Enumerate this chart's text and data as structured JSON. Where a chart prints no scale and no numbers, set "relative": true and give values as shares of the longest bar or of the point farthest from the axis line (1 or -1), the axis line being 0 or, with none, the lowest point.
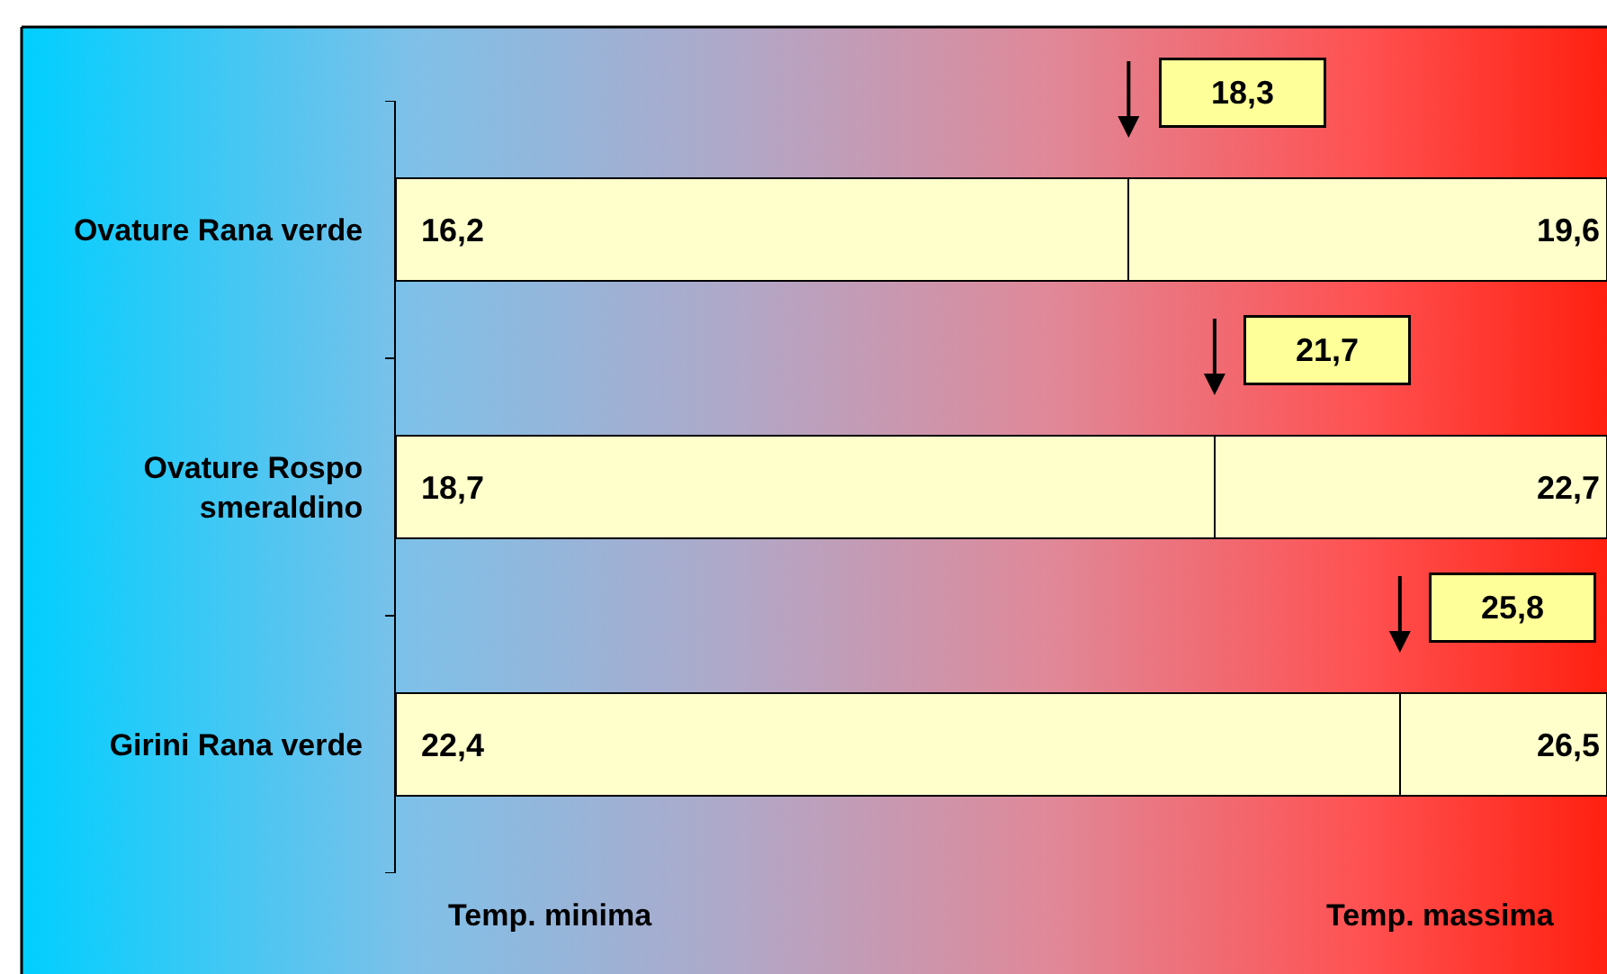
{
  "chart_data": {
    "type": "bar",
    "orientation": "horizontal",
    "stacked": true,
    "relative": true,
    "categories": [
      "Ovature Rana verde",
      "Ovature Rospo smeraldino",
      "Girini Rana verde"
    ],
    "series": [
      {
        "color": "#ffffcc",
        "values": [
          0.605,
          0.676,
          0.829
        ]
      },
      {
        "color": "#ffffcc",
        "values": [
          0.395,
          0.324,
          0.171
        ]
      }
    ],
    "annotations": [
      "16,2",
      "19,6",
      "18,3",
      "18,7",
      "22,7",
      "21,7",
      "22,4",
      "26,5",
      "25,8",
      "Temp. minima",
      "Temp. massima"
    ]
  }
}
